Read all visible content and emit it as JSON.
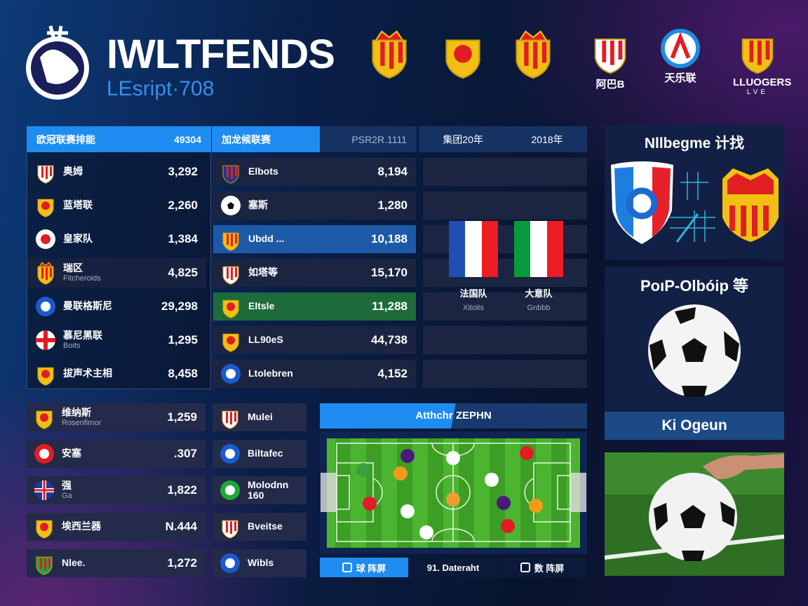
{
  "header": {
    "title": "IWLTFENDS",
    "subtitle": "LEsript·708",
    "crests": [
      {
        "icon": "crowned-shield-red-yellow-icon",
        "label": ""
      },
      {
        "icon": "yellow-shield-icon",
        "label": ""
      },
      {
        "icon": "crowned-shield-red-yellow-icon",
        "label": ""
      },
      {
        "icon": "tricolor-shield-icon",
        "label": "阿巴B"
      },
      {
        "icon": "blue-ring-icon",
        "label": "天乐联"
      },
      {
        "icon": "league-lion-icon",
        "label": "LLUOGERS"
      }
    ],
    "league_sublabel": "LVE"
  },
  "left_table": {
    "header_label": "欧冠联赛排能",
    "header_value": "49304",
    "rows": [
      {
        "crest": "tricolor-shield-icon",
        "name": "奥姆",
        "sub": "",
        "value": "3,292"
      },
      {
        "crest": "red-yellow-shield-icon",
        "name": "蓝塔联",
        "sub": "",
        "value": "2,260"
      },
      {
        "crest": "star-circle-icon",
        "name": "皇家队",
        "sub": "",
        "value": "1,384"
      },
      {
        "crest": "crowned-shield-icon",
        "name": "瑞区",
        "sub": "Fitcheroids",
        "value": "4,825"
      },
      {
        "crest": "blue-circle-icon",
        "name": "曼联格斯尼",
        "sub": "",
        "value": "29,298"
      },
      {
        "crest": "cross-circle-icon",
        "name": "慕尼黑联",
        "sub": "Boits",
        "value": "1,295"
      },
      {
        "crest": "red-yellow-shield-icon",
        "name": "拔声术主相",
        "sub": "",
        "value": "8,458"
      }
    ]
  },
  "middle_table": {
    "header_label": "加龙候联赛",
    "header_value": "PSR2R.1111",
    "rows": [
      {
        "crest": "red-blue-shield-icon",
        "name": "Elbots",
        "value": "8,194",
        "highlight": ""
      },
      {
        "crest": "soccer-ball-icon",
        "name": "塞斯",
        "value": "1,280",
        "highlight": ""
      },
      {
        "crest": "green-u-icon",
        "name": "Ubdd ...",
        "value": "10,188",
        "highlight": "#1c5aa8"
      },
      {
        "crest": "striped-shield-icon",
        "name": "如塔等",
        "value": "15,170",
        "highlight": ""
      },
      {
        "crest": "red-yellow-shield-icon",
        "name": "Eltsle",
        "value": "11,288",
        "highlight": "#1d6b3a"
      },
      {
        "crest": "yellow-shield-icon",
        "name": "LL90eS",
        "value": "44,738",
        "highlight": ""
      },
      {
        "crest": "blue-circle-icon",
        "name": "Ltolebren",
        "value": "4,152",
        "highlight": ""
      }
    ]
  },
  "compare": {
    "header_left": "集团20年",
    "header_right": "2018年",
    "teams": [
      {
        "flag": "france-flag-icon",
        "colors": [
          "#1f4fb0",
          "#ffffff",
          "#ee1c25"
        ],
        "name": "法国队",
        "sub": "Xitoits"
      },
      {
        "flag": "italy-flag-icon",
        "colors": [
          "#0a9a3c",
          "#ffffff",
          "#ee1c25"
        ],
        "name": "大意队",
        "sub": "Gnbbb"
      }
    ]
  },
  "lower_left": {
    "rows": [
      {
        "crest": "yellow-shield-icon",
        "name": "维纳斯",
        "sub": "Rosenfimor",
        "value": "1,259"
      },
      {
        "crest": "red-circle-icon",
        "name": "安塞",
        "sub": "",
        "value": ".307"
      },
      {
        "crest": "union-flag-circle-icon",
        "name": "强",
        "sub": "Ga",
        "value": "1,822"
      },
      {
        "crest": "red-yellow-shield-icon",
        "name": "埃西兰器",
        "sub": "",
        "value": "N.444"
      },
      {
        "crest": "green-red-shield-icon",
        "name": "Nlee.",
        "sub": "",
        "value": "1,272"
      }
    ]
  },
  "lower_middle": {
    "rows": [
      {
        "crest": "tricolor-shield-icon",
        "name": "Mulei"
      },
      {
        "crest": "blue-star-circle-icon",
        "name": "Biltafec"
      },
      {
        "crest": "green-circle-icon",
        "name": "Molodnn 160"
      },
      {
        "crest": "red-white-shield-icon",
        "name": "Bveitse"
      },
      {
        "crest": "blue-star-circle-icon",
        "name": "Wibls"
      }
    ]
  },
  "pitch": {
    "header": "Atthchr ZEPHN",
    "tabs": [
      {
        "icon": "camera-icon",
        "label": "球 阵屏",
        "active": true
      },
      {
        "icon": "",
        "label": "91. Dateraht",
        "active": false
      },
      {
        "icon": "phone-icon",
        "label": "数 阵屏",
        "active": false
      }
    ]
  },
  "right": {
    "card1_title": "Nllbegme 计找",
    "card2_title": "PoıP-Olbóip 等",
    "button_label": "Ki Ogeun"
  },
  "colors": {
    "accent": "#1e8cf0",
    "panel": "#1b2542",
    "highlight_blue": "#1c5aa8",
    "highlight_green": "#1d6b3a"
  }
}
